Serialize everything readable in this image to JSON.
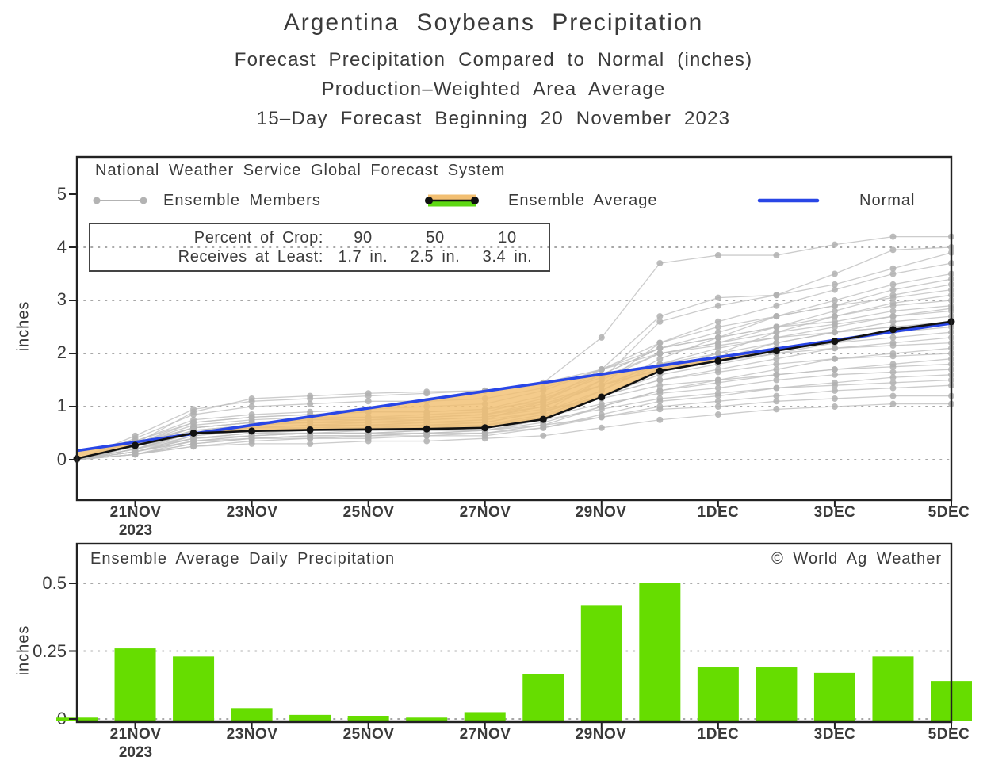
{
  "header": {
    "title": "Argentina Soybeans Precipitation",
    "subtitle1": "Forecast Precipitation Compared to Normal (inches)",
    "subtitle2": "Production–Weighted Area Average",
    "subtitle3": "15–Day Forecast Beginning 20 November 2023"
  },
  "colors": {
    "bar_green": "#66dd00",
    "band_orange": "#f2bf72",
    "band_green": "#5ed813",
    "normal_blue": "#2946e6",
    "ensemble_gray": "#bfbfbf",
    "average_black": "#111111"
  },
  "top_chart": {
    "source": "National Weather Service Global Forecast System",
    "legend": {
      "members": "Ensemble Members",
      "average": "Ensemble Average",
      "normal_label": "Normal"
    },
    "crop_box": {
      "row1_label": "Percent of Crop:",
      "row2_label": "Receives at Least:",
      "percents": [
        "90",
        "50",
        "10"
      ],
      "amounts": [
        "1.7 in.",
        "2.5 in.",
        "3.4 in."
      ]
    },
    "ylabel": "inches",
    "y_tick_labels": [
      "5",
      "4",
      "3",
      "2",
      "1",
      "0"
    ]
  },
  "x_axis": {
    "tick_labels": [
      "21NOV",
      "23NOV",
      "25NOV",
      "27NOV",
      "29NOV",
      "1DEC",
      "3DEC",
      "5DEC"
    ],
    "year": "2023"
  },
  "bottom_chart": {
    "title": "Ensemble Average Daily Precipitation",
    "credit": "© World Ag Weather",
    "ylabel": "inches",
    "y_tick_labels": [
      "0.5",
      "0.25",
      "0"
    ]
  },
  "chart_data": [
    {
      "type": "line",
      "title": "Forecast cumulative precipitation vs normal",
      "x_dates": [
        "20NOV",
        "21NOV",
        "22NOV",
        "23NOV",
        "24NOV",
        "25NOV",
        "26NOV",
        "27NOV",
        "28NOV",
        "29NOV",
        "30NOV",
        "1DEC",
        "2DEC",
        "3DEC",
        "4DEC",
        "5DEC"
      ],
      "x_tick_labels": [
        "21NOV",
        "23NOV",
        "25NOV",
        "27NOV",
        "29NOV",
        "1DEC",
        "3DEC",
        "5DEC"
      ],
      "ylabel": "inches",
      "ylim": [
        0,
        5
      ],
      "y_ticks": [
        0,
        1,
        2,
        3,
        4,
        5
      ],
      "grid": "dotted horizontal",
      "legend_position": "top inside",
      "series": {
        "normal": [
          0.17,
          0.33,
          0.49,
          0.65,
          0.81,
          0.97,
          1.13,
          1.29,
          1.45,
          1.61,
          1.77,
          1.93,
          2.09,
          2.25,
          2.41,
          2.57
        ],
        "ensemble_average": [
          0.02,
          0.27,
          0.5,
          0.54,
          0.56,
          0.57,
          0.58,
          0.6,
          0.76,
          1.18,
          1.67,
          1.86,
          2.05,
          2.23,
          2.45,
          2.6
        ],
        "ensemble_members": [
          [
            0,
            0.3,
            0.9,
            1.15,
            1.2,
            1.25,
            1.28,
            1.3,
            1.45,
            2.3,
            3.7,
            3.85,
            3.85,
            4.05,
            4.2,
            4.2
          ],
          [
            0,
            0.2,
            0.5,
            0.6,
            0.65,
            0.7,
            0.7,
            0.75,
            1.1,
            1.7,
            2.7,
            3.05,
            3.1,
            3.5,
            3.95,
            4.0
          ],
          [
            0,
            0.15,
            0.45,
            0.55,
            0.6,
            0.6,
            0.65,
            0.7,
            0.9,
            1.5,
            2.6,
            2.9,
            3.1,
            3.3,
            3.6,
            3.9
          ],
          [
            0,
            0.25,
            0.6,
            0.7,
            0.75,
            0.8,
            0.8,
            0.85,
            1.0,
            1.4,
            2.2,
            2.6,
            2.9,
            3.2,
            3.5,
            3.7
          ],
          [
            0,
            0.1,
            0.35,
            0.45,
            0.5,
            0.5,
            0.55,
            0.6,
            0.8,
            1.3,
            1.9,
            2.3,
            2.7,
            3.0,
            3.3,
            3.5
          ],
          [
            0,
            0.3,
            0.7,
            0.8,
            0.85,
            0.9,
            0.9,
            0.95,
            1.2,
            1.6,
            2.1,
            2.4,
            2.7,
            2.9,
            3.2,
            3.4
          ],
          [
            0,
            0.2,
            0.55,
            0.65,
            0.7,
            0.7,
            0.75,
            0.8,
            1.0,
            1.5,
            2.0,
            2.2,
            2.5,
            2.8,
            3.1,
            3.3
          ],
          [
            0,
            0.35,
            0.75,
            0.85,
            0.9,
            0.95,
            1.0,
            1.05,
            1.3,
            1.7,
            2.2,
            2.5,
            2.7,
            2.9,
            3.05,
            3.2
          ],
          [
            0,
            0.15,
            0.4,
            0.5,
            0.55,
            0.6,
            0.6,
            0.65,
            0.85,
            1.2,
            1.7,
            2.0,
            2.4,
            2.7,
            2.95,
            3.1
          ],
          [
            0,
            0.25,
            0.6,
            0.7,
            0.75,
            0.75,
            0.8,
            0.85,
            1.1,
            1.6,
            2.1,
            2.3,
            2.5,
            2.7,
            2.9,
            3.0
          ],
          [
            0,
            0.4,
            0.85,
            1.0,
            1.05,
            1.1,
            1.1,
            1.15,
            1.35,
            1.7,
            2.1,
            2.3,
            2.5,
            2.6,
            2.8,
            2.9
          ],
          [
            0,
            0.2,
            0.5,
            0.6,
            0.6,
            0.65,
            0.65,
            0.7,
            0.9,
            1.3,
            1.8,
            2.1,
            2.3,
            2.5,
            2.7,
            2.85
          ],
          [
            0,
            0.3,
            0.65,
            0.75,
            0.8,
            0.8,
            0.85,
            0.9,
            1.15,
            1.55,
            2.0,
            2.2,
            2.4,
            2.55,
            2.7,
            2.8
          ],
          [
            0,
            0.1,
            0.3,
            0.4,
            0.45,
            0.45,
            0.5,
            0.55,
            0.75,
            1.2,
            1.7,
            1.9,
            2.2,
            2.4,
            2.6,
            2.7
          ],
          [
            0,
            0.25,
            0.55,
            0.65,
            0.7,
            0.7,
            0.75,
            0.8,
            1.0,
            1.4,
            1.8,
            2.0,
            2.2,
            2.4,
            2.5,
            2.6
          ],
          [
            0,
            0.45,
            0.95,
            1.1,
            1.15,
            1.2,
            1.25,
            1.3,
            1.45,
            1.7,
            2.0,
            2.15,
            2.3,
            2.4,
            2.5,
            2.55
          ],
          [
            0,
            0.15,
            0.4,
            0.5,
            0.5,
            0.55,
            0.55,
            0.6,
            0.8,
            1.2,
            1.6,
            1.8,
            2.0,
            2.2,
            2.4,
            2.5
          ],
          [
            0,
            0.3,
            0.6,
            0.7,
            0.75,
            0.75,
            0.8,
            0.85,
            1.05,
            1.4,
            1.7,
            1.9,
            2.1,
            2.2,
            2.3,
            2.4
          ],
          [
            0,
            0.2,
            0.5,
            0.6,
            0.65,
            0.65,
            0.7,
            0.7,
            0.9,
            1.2,
            1.5,
            1.7,
            1.9,
            2.1,
            2.2,
            2.3
          ],
          [
            0,
            0.35,
            0.7,
            0.8,
            0.85,
            0.9,
            0.9,
            0.95,
            1.1,
            1.4,
            1.7,
            1.85,
            2.0,
            2.1,
            2.15,
            2.2
          ],
          [
            0,
            0.1,
            0.3,
            0.4,
            0.4,
            0.45,
            0.45,
            0.5,
            0.65,
            1.0,
            1.3,
            1.5,
            1.7,
            1.9,
            2.0,
            2.1
          ],
          [
            0,
            0.25,
            0.55,
            0.6,
            0.65,
            0.65,
            0.7,
            0.75,
            0.9,
            1.2,
            1.5,
            1.65,
            1.8,
            1.9,
            1.95,
            2.0
          ],
          [
            0,
            0.15,
            0.35,
            0.45,
            0.5,
            0.5,
            0.55,
            0.55,
            0.7,
            1.0,
            1.3,
            1.45,
            1.6,
            1.7,
            1.8,
            1.9
          ],
          [
            0,
            0.3,
            0.6,
            0.7,
            0.7,
            0.75,
            0.75,
            0.8,
            0.95,
            1.15,
            1.4,
            1.5,
            1.6,
            1.7,
            1.75,
            1.8
          ],
          [
            0,
            0.2,
            0.45,
            0.55,
            0.55,
            0.6,
            0.6,
            0.65,
            0.8,
            1.05,
            1.25,
            1.35,
            1.5,
            1.6,
            1.65,
            1.7
          ],
          [
            0,
            0.1,
            0.25,
            0.35,
            0.4,
            0.4,
            0.45,
            0.45,
            0.6,
            0.85,
            1.1,
            1.2,
            1.35,
            1.45,
            1.55,
            1.6
          ],
          [
            0,
            0.25,
            0.5,
            0.55,
            0.6,
            0.6,
            0.65,
            0.65,
            0.75,
            0.95,
            1.15,
            1.25,
            1.35,
            1.4,
            1.45,
            1.5
          ],
          [
            0,
            0.15,
            0.35,
            0.4,
            0.45,
            0.45,
            0.5,
            0.5,
            0.6,
            0.8,
            1.0,
            1.1,
            1.2,
            1.3,
            1.35,
            1.4
          ],
          [
            0,
            0.2,
            0.4,
            0.45,
            0.5,
            0.5,
            0.5,
            0.55,
            0.65,
            0.8,
            0.95,
            1.0,
            1.1,
            1.15,
            1.2,
            1.2
          ],
          [
            0,
            0.1,
            0.25,
            0.3,
            0.3,
            0.35,
            0.35,
            0.4,
            0.45,
            0.6,
            0.75,
            0.85,
            0.95,
            1.0,
            1.05,
            1.05
          ]
        ]
      },
      "annotations": {
        "percent_of_crop": {
          "90": "1.7 in.",
          "50": "2.5 in.",
          "10": "3.4 in."
        }
      }
    },
    {
      "type": "bar",
      "title": "Ensemble Average Daily Precipitation",
      "x_dates": [
        "20NOV",
        "21NOV",
        "22NOV",
        "23NOV",
        "24NOV",
        "25NOV",
        "26NOV",
        "27NOV",
        "28NOV",
        "29NOV",
        "30NOV",
        "1DEC",
        "2DEC",
        "3DEC",
        "4DEC",
        "5DEC"
      ],
      "x_tick_labels": [
        "21NOV",
        "23NOV",
        "25NOV",
        "27NOV",
        "29NOV",
        "1DEC",
        "3DEC",
        "5DEC"
      ],
      "values": [
        0.005,
        0.26,
        0.23,
        0.04,
        0.015,
        0.01,
        0.005,
        0.025,
        0.165,
        0.42,
        0.5,
        0.19,
        0.19,
        0.17,
        0.23,
        0.14
      ],
      "ylabel": "inches",
      "ylim": [
        0,
        0.65
      ],
      "y_ticks": [
        0,
        0.25,
        0.5
      ],
      "grid": "dotted horizontal",
      "bar_color": "#66dd00"
    }
  ]
}
